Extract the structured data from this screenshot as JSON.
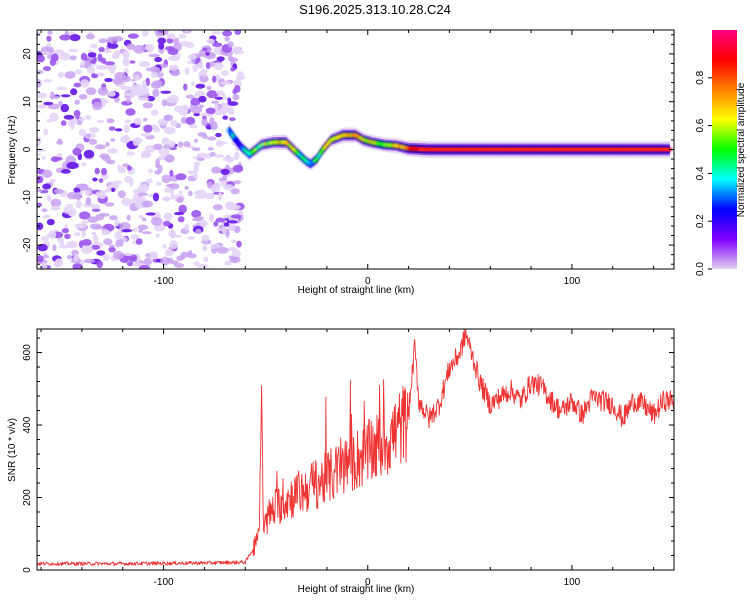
{
  "title": "S196.2025.313.10.28.C24",
  "chart_data": [
    {
      "type": "heatmap",
      "xlabel": "Height of straight line (km)",
      "ylabel": "Frequency (Hz)",
      "xlim": [
        -162,
        150
      ],
      "ylim": [
        -25,
        25
      ],
      "xticks": [
        -100,
        0,
        100
      ],
      "xtick_labels": [
        "-100",
        "0",
        "100"
      ],
      "yticks": [
        -20,
        -10,
        0,
        10,
        20
      ],
      "ytick_labels": [
        "-20",
        "-10",
        "0",
        "10",
        "20"
      ],
      "colorbar": {
        "label": "Normalized spectral amplitude",
        "range": [
          0,
          1
        ],
        "ticks": [
          0.0,
          0.2,
          0.4,
          0.6,
          0.8
        ],
        "tick_labels": [
          "0.0",
          "0.2",
          "0.4",
          "0.6",
          "0.8"
        ],
        "colors": [
          "#e0d0f0",
          "#8000ff",
          "#0000ff",
          "#00ffff",
          "#00ff00",
          "#ffff00",
          "#ff8000",
          "#ff0000",
          "#ff0080"
        ]
      },
      "noise_region": {
        "x_range": [
          -162,
          -66
        ],
        "freq_range": [
          -25,
          25
        ],
        "amplitude": 0.1
      },
      "ridge": {
        "x": [
          -68,
          -62,
          -58,
          -52,
          -46,
          -40,
          -35,
          -30,
          -28,
          -25,
          -22,
          -18,
          -12,
          -6,
          -2,
          2,
          8,
          14,
          20,
          30,
          60,
          100,
          148
        ],
        "freq": [
          4,
          0.5,
          -1,
          1,
          1.5,
          1.5,
          -0.5,
          -2.5,
          -3,
          -2,
          0,
          2,
          3,
          3,
          2,
          1.5,
          1,
          0.8,
          0.2,
          0,
          0,
          0,
          0
        ],
        "amplitude": [
          0.35,
          0.25,
          0.4,
          0.55,
          0.6,
          0.7,
          0.5,
          0.35,
          0.3,
          0.5,
          0.55,
          0.6,
          0.75,
          0.7,
          0.65,
          0.6,
          0.6,
          0.65,
          0.85,
          0.95,
          0.95,
          0.95,
          0.95
        ]
      }
    },
    {
      "type": "line",
      "xlabel": "Height of straight line (km)",
      "ylabel": "SNR (10 * v/v)",
      "xlim": [
        -162,
        150
      ],
      "ylim": [
        0,
        665
      ],
      "xticks": [
        -100,
        0,
        100
      ],
      "xtick_labels": [
        "-100",
        "0",
        "100"
      ],
      "yticks": [
        0,
        200,
        400,
        600
      ],
      "ytick_labels": [
        "0",
        "200",
        "400",
        "600"
      ],
      "series": [
        {
          "name": "SNR",
          "color": "#ee3333",
          "x": [
            -162,
            -120,
            -80,
            -60,
            -56,
            -53,
            -52,
            -51,
            -49,
            -45,
            -40,
            -30,
            -20,
            -10,
            0,
            10,
            20,
            23,
            25,
            30,
            35,
            40,
            45,
            48,
            52,
            55,
            60,
            65,
            70,
            75,
            80,
            85,
            90,
            95,
            100,
            105,
            110,
            115,
            120,
            125,
            130,
            135,
            140,
            145,
            150
          ],
          "values": [
            18,
            18,
            20,
            22,
            60,
            130,
            505,
            110,
            150,
            180,
            200,
            230,
            260,
            300,
            330,
            370,
            430,
            620,
            470,
            420,
            460,
            560,
            600,
            655,
            580,
            520,
            460,
            480,
            500,
            470,
            520,
            510,
            470,
            440,
            470,
            430,
            480,
            470,
            460,
            420,
            470,
            460,
            430,
            470,
            470
          ]
        }
      ]
    }
  ]
}
